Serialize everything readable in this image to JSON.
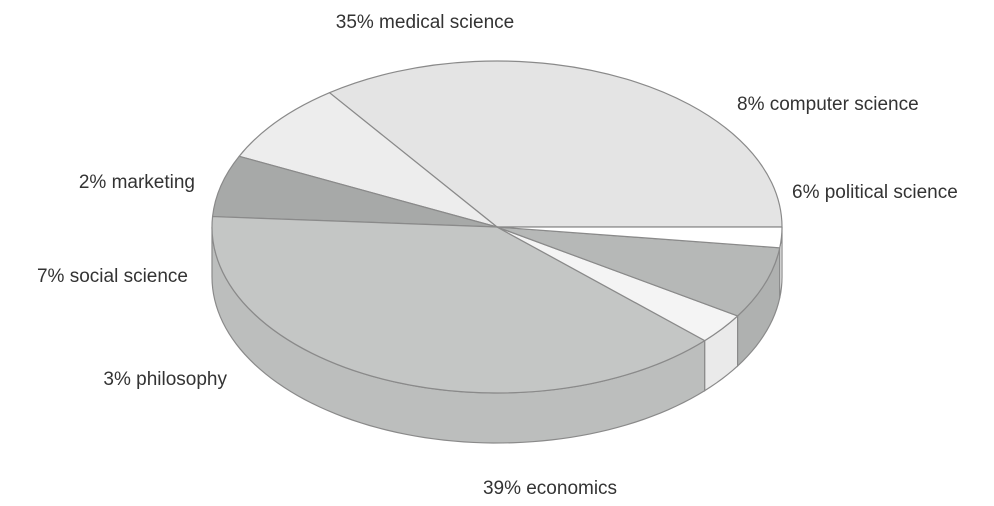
{
  "chart_data": {
    "type": "pie",
    "style": "3d",
    "slices": [
      {
        "label": "35% medical science",
        "category": "medical science",
        "value": 35,
        "color": "#e4e4e4"
      },
      {
        "label": "8% computer science",
        "category": "computer science",
        "value": 8,
        "color": "#ededed"
      },
      {
        "label": "6% political science",
        "category": "political science",
        "value": 6,
        "color": "#a7a9a8"
      },
      {
        "label": "39% economics",
        "category": "economics",
        "value": 39,
        "color": "#c4c6c5"
      },
      {
        "label": "3% philosophy",
        "category": "philosophy",
        "value": 3,
        "color": "#f4f4f4"
      },
      {
        "label": "7% social science",
        "category": "social science",
        "value": 7,
        "color": "#b6b8b7"
      },
      {
        "label": "2% marketing",
        "category": "marketing",
        "value": 2,
        "color": "#ffffff"
      }
    ],
    "legend": "none"
  }
}
